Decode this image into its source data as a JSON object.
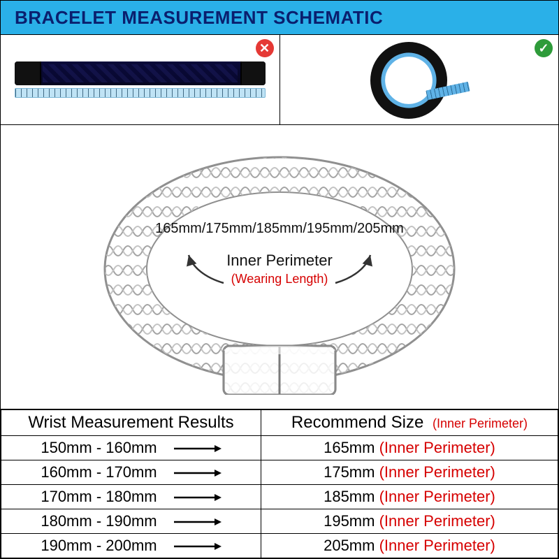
{
  "title": "BRACELET MEASUREMENT SCHEMATIC",
  "colors": {
    "title_bg": "#2ab0e8",
    "title_text": "#0a1f6e",
    "accent_red": "#d60000",
    "border": "#000000",
    "badge_bad": "#e53935",
    "badge_good": "#2e9b3a",
    "ruler_bg": "#bfe3f5",
    "ruler_tick": "#416a84",
    "tape": "#5fb2e6",
    "bracelet_dark": "#0a0a3a",
    "clasp": "#111111",
    "diagram_stroke": "#777777"
  },
  "methods": {
    "wrong": {
      "badge": "✕",
      "label": "flat-length-measure"
    },
    "right": {
      "badge": "✓",
      "label": "inner-circumference-measure"
    }
  },
  "diagram": {
    "sizes_line": "165mm/175mm/185mm/195mm/205mm",
    "label_primary": "Inner Perimeter",
    "label_secondary": "(Wearing Length)"
  },
  "table": {
    "columns": [
      "Wrist Measurement Results",
      "Recommend Size"
    ],
    "column_suffix": "(Inner Perimeter)",
    "rows": [
      {
        "wrist": "150mm - 160mm",
        "size": "165mm",
        "suffix": "(Inner Perimeter)"
      },
      {
        "wrist": "160mm - 170mm",
        "size": "175mm",
        "suffix": "(Inner Perimeter)"
      },
      {
        "wrist": "170mm - 180mm",
        "size": "185mm",
        "suffix": "(Inner Perimeter)"
      },
      {
        "wrist": "180mm - 190mm",
        "size": "195mm",
        "suffix": "(Inner Perimeter)"
      },
      {
        "wrist": "190mm - 200mm",
        "size": "205mm",
        "suffix": "(Inner Perimeter)"
      }
    ],
    "font_size_header": 24,
    "font_size_cell": 22
  }
}
